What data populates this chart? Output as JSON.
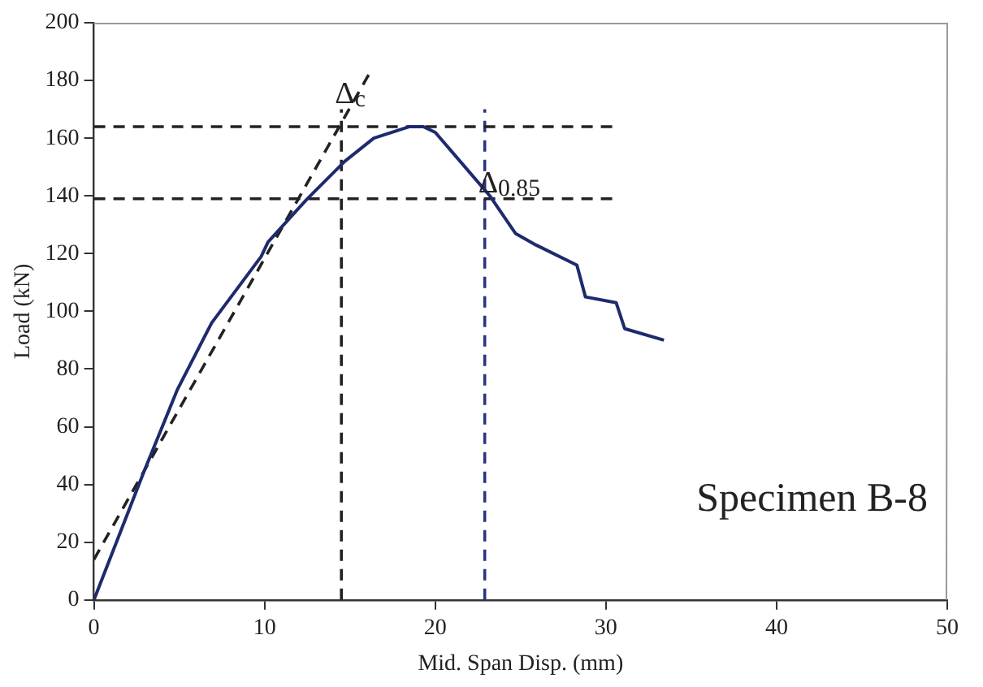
{
  "chart_data": {
    "type": "line",
    "xlabel": "Mid. Span Disp. (mm)",
    "ylabel": "Load (kN)",
    "xlim": [
      0,
      50
    ],
    "xticks": [
      0,
      10,
      20,
      30,
      40,
      50
    ],
    "ylim": [
      0,
      200
    ],
    "yticks": [
      0,
      20,
      40,
      60,
      80,
      100,
      120,
      140,
      160,
      180,
      200
    ],
    "grid": false,
    "legend": false,
    "marker": "none",
    "series": [
      {
        "color": "#1f2a6e",
        "line_style": "solid",
        "x": [
          0,
          2.9,
          4.9,
          6.9,
          9.8,
          10.2,
          12.5,
          14.7,
          16.4,
          18.5,
          19.3,
          20,
          21.6,
          23.2,
          24.7,
          25.9,
          28.3,
          28.8,
          30.6,
          31.1,
          33.4
        ],
        "values": [
          0,
          44,
          73,
          96,
          119,
          124,
          139,
          152,
          160,
          164,
          164,
          162,
          151,
          140,
          127,
          123,
          116,
          105,
          103,
          94,
          90
        ]
      },
      {
        "color": "#222222",
        "line_style": "dashed",
        "x": [
          0,
          16.1
        ],
        "values": [
          14,
          182
        ]
      },
      {
        "color": "#222222",
        "line_style": "dashed",
        "x": [
          0,
          30.5
        ],
        "values": [
          164,
          164
        ]
      },
      {
        "color": "#222222",
        "line_style": "dashed",
        "x": [
          0,
          30.5
        ],
        "values": [
          139,
          139
        ]
      },
      {
        "color": "#222222",
        "line_style": "dashed",
        "x": [
          14.5,
          14.5
        ],
        "values": [
          0,
          170
        ]
      },
      {
        "color": "#2a3580",
        "line_style": "dashed",
        "x": [
          22.9,
          22.9
        ],
        "values": [
          0,
          170
        ]
      }
    ],
    "annotations": [
      {
        "text": "Δ$_{c}$",
        "x": 14.5,
        "y": 170
      },
      {
        "text": "Δ$_{0.85}$",
        "x": 22.9,
        "y": 139
      },
      "Specimen B-8"
    ]
  }
}
